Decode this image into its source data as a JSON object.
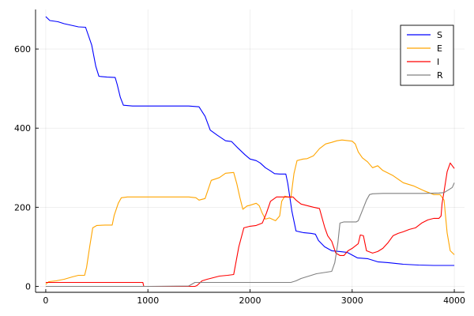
{
  "chart_data": {
    "type": "line",
    "title": "",
    "xlabel": "",
    "ylabel": "",
    "xlim": [
      -100,
      4100
    ],
    "ylim": [
      -15,
      700
    ],
    "grid": true,
    "legend_position": "top-right",
    "x_ticks": [
      0,
      1000,
      2000,
      3000,
      4000
    ],
    "x_tick_labels": [
      "0",
      "1000",
      "2000",
      "3000",
      "4000"
    ],
    "y_ticks": [
      0,
      200,
      400,
      600
    ],
    "y_tick_labels": [
      "0",
      "200",
      "400",
      "600"
    ],
    "series": [
      {
        "name": "S",
        "color": "#0000ff",
        "points": [
          [
            0,
            682
          ],
          [
            40,
            672
          ],
          [
            120,
            669
          ],
          [
            180,
            664
          ],
          [
            250,
            660
          ],
          [
            320,
            656
          ],
          [
            390,
            655
          ],
          [
            410,
            640
          ],
          [
            450,
            610
          ],
          [
            490,
            556
          ],
          [
            520,
            531
          ],
          [
            600,
            529
          ],
          [
            680,
            528
          ],
          [
            700,
            510
          ],
          [
            730,
            478
          ],
          [
            760,
            458
          ],
          [
            850,
            456
          ],
          [
            1000,
            456
          ],
          [
            1200,
            456
          ],
          [
            1400,
            456
          ],
          [
            1500,
            454
          ],
          [
            1560,
            430
          ],
          [
            1610,
            395
          ],
          [
            1680,
            382
          ],
          [
            1760,
            368
          ],
          [
            1820,
            366
          ],
          [
            1880,
            350
          ],
          [
            1950,
            333
          ],
          [
            2000,
            322
          ],
          [
            2060,
            318
          ],
          [
            2100,
            312
          ],
          [
            2150,
            300
          ],
          [
            2200,
            292
          ],
          [
            2240,
            285
          ],
          [
            2290,
            284
          ],
          [
            2350,
            284
          ],
          [
            2370,
            260
          ],
          [
            2410,
            190
          ],
          [
            2450,
            140
          ],
          [
            2520,
            136
          ],
          [
            2600,
            134
          ],
          [
            2640,
            132
          ],
          [
            2670,
            116
          ],
          [
            2730,
            100
          ],
          [
            2800,
            90
          ],
          [
            2880,
            88
          ],
          [
            2950,
            86
          ],
          [
            3050,
            72
          ],
          [
            3150,
            70
          ],
          [
            3250,
            62
          ],
          [
            3350,
            60
          ],
          [
            3500,
            56
          ],
          [
            3650,
            54
          ],
          [
            3800,
            53
          ],
          [
            4000,
            53
          ]
        ]
      },
      {
        "name": "E",
        "color": "#ffa500",
        "points": [
          [
            0,
            5
          ],
          [
            30,
            12
          ],
          [
            100,
            14
          ],
          [
            180,
            18
          ],
          [
            260,
            24
          ],
          [
            320,
            28
          ],
          [
            380,
            28
          ],
          [
            400,
            48
          ],
          [
            430,
            100
          ],
          [
            460,
            148
          ],
          [
            500,
            154
          ],
          [
            580,
            155
          ],
          [
            650,
            155
          ],
          [
            670,
            180
          ],
          [
            710,
            210
          ],
          [
            740,
            224
          ],
          [
            800,
            226
          ],
          [
            1000,
            226
          ],
          [
            1200,
            226
          ],
          [
            1400,
            226
          ],
          [
            1470,
            224
          ],
          [
            1500,
            218
          ],
          [
            1560,
            222
          ],
          [
            1620,
            268
          ],
          [
            1700,
            275
          ],
          [
            1760,
            286
          ],
          [
            1840,
            288
          ],
          [
            1870,
            260
          ],
          [
            1900,
            225
          ],
          [
            1930,
            195
          ],
          [
            1970,
            203
          ],
          [
            2000,
            205
          ],
          [
            2060,
            210
          ],
          [
            2090,
            204
          ],
          [
            2120,
            185
          ],
          [
            2150,
            170
          ],
          [
            2190,
            173
          ],
          [
            2250,
            166
          ],
          [
            2290,
            178
          ],
          [
            2310,
            215
          ],
          [
            2340,
            228
          ],
          [
            2400,
            224
          ],
          [
            2430,
            285
          ],
          [
            2460,
            318
          ],
          [
            2520,
            322
          ],
          [
            2560,
            323
          ],
          [
            2620,
            330
          ],
          [
            2680,
            348
          ],
          [
            2740,
            360
          ],
          [
            2800,
            364
          ],
          [
            2850,
            368
          ],
          [
            2900,
            370
          ],
          [
            3000,
            367
          ],
          [
            3030,
            360
          ],
          [
            3060,
            340
          ],
          [
            3100,
            325
          ],
          [
            3150,
            315
          ],
          [
            3200,
            300
          ],
          [
            3250,
            305
          ],
          [
            3300,
            293
          ],
          [
            3400,
            280
          ],
          [
            3500,
            262
          ],
          [
            3600,
            254
          ],
          [
            3700,
            242
          ],
          [
            3800,
            232
          ],
          [
            3860,
            232
          ],
          [
            3900,
            218
          ],
          [
            3930,
            135
          ],
          [
            3960,
            90
          ],
          [
            4000,
            80
          ]
        ]
      },
      {
        "name": "I",
        "color": "#ff0000",
        "points": [
          [
            0,
            10
          ],
          [
            100,
            10
          ],
          [
            300,
            10
          ],
          [
            500,
            10
          ],
          [
            700,
            10
          ],
          [
            900,
            10
          ],
          [
            950,
            10
          ],
          [
            960,
            0
          ],
          [
            1100,
            0
          ],
          [
            1300,
            0
          ],
          [
            1460,
            0
          ],
          [
            1480,
            2
          ],
          [
            1530,
            14
          ],
          [
            1580,
            18
          ],
          [
            1640,
            22
          ],
          [
            1700,
            26
          ],
          [
            1780,
            28
          ],
          [
            1840,
            30
          ],
          [
            1890,
            100
          ],
          [
            1940,
            148
          ],
          [
            2000,
            152
          ],
          [
            2060,
            154
          ],
          [
            2120,
            160
          ],
          [
            2160,
            185
          ],
          [
            2200,
            215
          ],
          [
            2260,
            226
          ],
          [
            2320,
            226
          ],
          [
            2420,
            226
          ],
          [
            2450,
            218
          ],
          [
            2500,
            208
          ],
          [
            2560,
            204
          ],
          [
            2620,
            200
          ],
          [
            2680,
            197
          ],
          [
            2700,
            178
          ],
          [
            2730,
            150
          ],
          [
            2760,
            128
          ],
          [
            2800,
            114
          ],
          [
            2840,
            84
          ],
          [
            2880,
            78
          ],
          [
            2920,
            78
          ],
          [
            2960,
            90
          ],
          [
            3000,
            96
          ],
          [
            3060,
            108
          ],
          [
            3080,
            130
          ],
          [
            3110,
            128
          ],
          [
            3140,
            90
          ],
          [
            3200,
            84
          ],
          [
            3250,
            88
          ],
          [
            3300,
            96
          ],
          [
            3350,
            110
          ],
          [
            3400,
            128
          ],
          [
            3450,
            134
          ],
          [
            3500,
            138
          ],
          [
            3560,
            144
          ],
          [
            3620,
            148
          ],
          [
            3680,
            160
          ],
          [
            3740,
            168
          ],
          [
            3800,
            172
          ],
          [
            3850,
            172
          ],
          [
            3870,
            178
          ],
          [
            3880,
            210
          ],
          [
            3900,
            240
          ],
          [
            3930,
            290
          ],
          [
            3960,
            312
          ],
          [
            3980,
            305
          ],
          [
            4000,
            298
          ]
        ]
      },
      {
        "name": "R",
        "color": "#808080",
        "points": [
          [
            0,
            0
          ],
          [
            500,
            0
          ],
          [
            1000,
            0
          ],
          [
            1400,
            1
          ],
          [
            1460,
            10
          ],
          [
            1600,
            10
          ],
          [
            1800,
            10
          ],
          [
            2000,
            10
          ],
          [
            2200,
            10
          ],
          [
            2400,
            10
          ],
          [
            2450,
            14
          ],
          [
            2500,
            20
          ],
          [
            2550,
            24
          ],
          [
            2600,
            28
          ],
          [
            2650,
            32
          ],
          [
            2700,
            34
          ],
          [
            2750,
            36
          ],
          [
            2800,
            38
          ],
          [
            2830,
            60
          ],
          [
            2860,
            110
          ],
          [
            2880,
            160
          ],
          [
            2920,
            163
          ],
          [
            2980,
            163
          ],
          [
            3040,
            163
          ],
          [
            3060,
            166
          ],
          [
            3100,
            192
          ],
          [
            3140,
            218
          ],
          [
            3170,
            232
          ],
          [
            3200,
            234
          ],
          [
            3300,
            235
          ],
          [
            3500,
            235
          ],
          [
            3700,
            235
          ],
          [
            3850,
            236
          ],
          [
            3900,
            237
          ],
          [
            3950,
            245
          ],
          [
            3980,
            250
          ],
          [
            4000,
            262
          ]
        ]
      }
    ]
  }
}
